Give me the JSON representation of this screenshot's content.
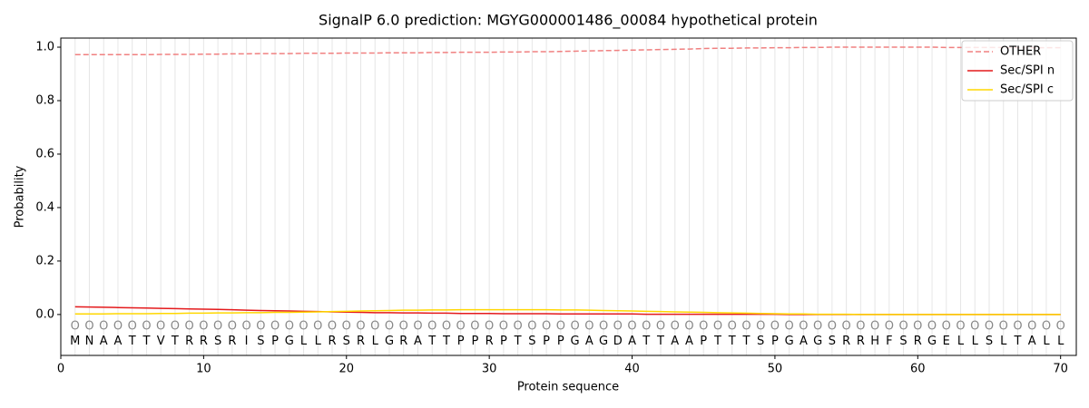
{
  "chart_data": {
    "type": "line",
    "title": "SignalP 6.0 prediction: MGYG000001486_00084 hypothetical protein",
    "xlabel": "Protein sequence",
    "ylabel": "Probability",
    "x": [
      1,
      2,
      3,
      4,
      5,
      6,
      7,
      8,
      9,
      10,
      11,
      12,
      13,
      14,
      15,
      16,
      17,
      18,
      19,
      20,
      21,
      22,
      23,
      24,
      25,
      26,
      27,
      28,
      29,
      30,
      31,
      32,
      33,
      34,
      35,
      36,
      37,
      38,
      39,
      40,
      41,
      42,
      43,
      44,
      45,
      46,
      47,
      48,
      49,
      50,
      51,
      52,
      53,
      54,
      55,
      56,
      57,
      58,
      59,
      60,
      61,
      62,
      63,
      64,
      65,
      66,
      67,
      68,
      69,
      70
    ],
    "sequence": [
      "M",
      "N",
      "A",
      "A",
      "T",
      "T",
      "V",
      "T",
      "R",
      "R",
      "S",
      "R",
      "I",
      "S",
      "P",
      "G",
      "L",
      "L",
      "R",
      "S",
      "R",
      "L",
      "G",
      "R",
      "A",
      "T",
      "T",
      "P",
      "P",
      "R",
      "P",
      "T",
      "S",
      "P",
      "P",
      "G",
      "A",
      "G",
      "D",
      "A",
      "T",
      "T",
      "A",
      "A",
      "P",
      "T",
      "T",
      "T",
      "S",
      "P",
      "G",
      "A",
      "G",
      "S",
      "R",
      "R",
      "H",
      "F",
      "S",
      "R",
      "G",
      "E",
      "L",
      "L",
      "S",
      "L",
      "T",
      "A",
      "L",
      "L"
    ],
    "residue_labels": [
      "O",
      "O",
      "O",
      "O",
      "O",
      "O",
      "O",
      "O",
      "O",
      "O",
      "O",
      "O",
      "O",
      "O",
      "O",
      "O",
      "O",
      "O",
      "O",
      "O",
      "O",
      "O",
      "O",
      "O",
      "O",
      "O",
      "O",
      "O",
      "O",
      "O",
      "O",
      "O",
      "O",
      "O",
      "O",
      "O",
      "O",
      "O",
      "O",
      "O",
      "O",
      "O",
      "O",
      "O",
      "O",
      "O",
      "O",
      "O",
      "O",
      "O",
      "O",
      "O",
      "O",
      "O",
      "O",
      "O",
      "O",
      "O",
      "O",
      "O",
      "O",
      "O",
      "O",
      "O",
      "O",
      "O",
      "O",
      "O",
      "O",
      "O"
    ],
    "residue_label_y": -0.045,
    "sequence_y": -0.1,
    "series": [
      {
        "name": "OTHER",
        "color": "#f08080",
        "linestyle": "dashed",
        "values": [
          0.972,
          0.972,
          0.972,
          0.972,
          0.972,
          0.972,
          0.973,
          0.973,
          0.973,
          0.974,
          0.974,
          0.975,
          0.975,
          0.976,
          0.976,
          0.976,
          0.977,
          0.977,
          0.977,
          0.978,
          0.978,
          0.978,
          0.979,
          0.979,
          0.979,
          0.98,
          0.98,
          0.981,
          0.981,
          0.981,
          0.982,
          0.982,
          0.983,
          0.983,
          0.984,
          0.985,
          0.986,
          0.987,
          0.988,
          0.989,
          0.99,
          0.991,
          0.992,
          0.993,
          0.995,
          0.996,
          0.996,
          0.997,
          0.997,
          0.998,
          0.998,
          0.999,
          0.999,
          1.0,
          1.0,
          1.0,
          1.0,
          1.0,
          1.0,
          1.0,
          1.0,
          0.999,
          0.999,
          0.999,
          0.999,
          0.999,
          0.998,
          0.998,
          0.998,
          0.998
        ]
      },
      {
        "name": "Sec/SPI n",
        "color": "#e41a1c",
        "linestyle": "solid",
        "values": [
          0.029,
          0.028,
          0.027,
          0.026,
          0.025,
          0.024,
          0.023,
          0.022,
          0.021,
          0.02,
          0.019,
          0.018,
          0.016,
          0.015,
          0.014,
          0.013,
          0.012,
          0.011,
          0.01,
          0.009,
          0.008,
          0.007,
          0.007,
          0.006,
          0.006,
          0.005,
          0.005,
          0.004,
          0.004,
          0.004,
          0.003,
          0.003,
          0.003,
          0.003,
          0.002,
          0.002,
          0.002,
          0.002,
          0.002,
          0.002,
          0.001,
          0.001,
          0.001,
          0.001,
          0.001,
          0.001,
          0.001,
          0.001,
          0.001,
          0.001,
          0,
          0,
          0,
          0,
          0,
          0,
          0,
          0,
          0,
          0,
          0,
          0,
          0,
          0,
          0,
          0,
          0,
          0,
          0,
          0
        ]
      },
      {
        "name": "Sec/SPI c",
        "color": "#ffd700",
        "linestyle": "solid",
        "values": [
          0.002,
          0.002,
          0.002,
          0.003,
          0.003,
          0.003,
          0.004,
          0.004,
          0.005,
          0.005,
          0.006,
          0.006,
          0.007,
          0.007,
          0.008,
          0.008,
          0.009,
          0.01,
          0.011,
          0.012,
          0.013,
          0.014,
          0.015,
          0.016,
          0.016,
          0.017,
          0.017,
          0.018,
          0.018,
          0.018,
          0.018,
          0.018,
          0.018,
          0.018,
          0.017,
          0.017,
          0.016,
          0.015,
          0.014,
          0.013,
          0.012,
          0.011,
          0.01,
          0.009,
          0.008,
          0.007,
          0.006,
          0.005,
          0.004,
          0.003,
          0.002,
          0.002,
          0.001,
          0.001,
          0.001,
          0,
          0,
          0,
          0,
          0,
          0,
          0,
          0,
          0,
          0,
          0,
          0,
          0,
          0,
          0
        ]
      }
    ],
    "xlim": [
      0,
      71.1
    ],
    "ylim": [
      -0.153,
      1.034
    ],
    "xticks": [
      0,
      10,
      20,
      30,
      40,
      50,
      60,
      70
    ],
    "yticks": [
      {
        "value": 0,
        "label": "0.0"
      },
      0.2,
      0.4,
      0.6,
      {
        "value": 0.8,
        "label": "0.8"
      },
      {
        "value": 1,
        "label": "1.0"
      }
    ],
    "grid": true,
    "legend": "upper right"
  }
}
